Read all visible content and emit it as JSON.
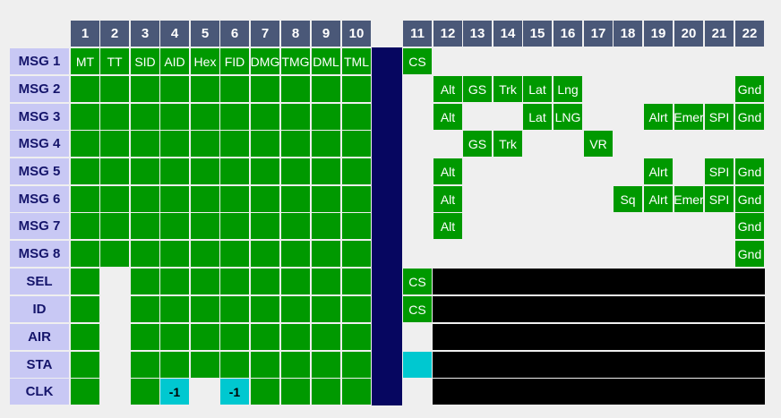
{
  "colors": {
    "header_bg": "#4a5878",
    "row_label_bg": "#c8c8f4",
    "row_label_text": "#15156b",
    "field_green": "#009900",
    "separator_navy": "#060660",
    "unused_black": "#000000",
    "delta_cyan": "#00c8d0",
    "background": "#efefef"
  },
  "columns": [
    "1",
    "2",
    "3",
    "4",
    "5",
    "6",
    "7",
    "8",
    "9",
    "10",
    "11",
    "12",
    "13",
    "14",
    "15",
    "16",
    "17",
    "18",
    "19",
    "20",
    "21",
    "22"
  ],
  "rows": [
    {
      "label": "MSG 1",
      "cells": [
        {
          "t": "MT",
          "c": "green"
        },
        {
          "t": "TT",
          "c": "green"
        },
        {
          "t": "SID",
          "c": "green"
        },
        {
          "t": "AID",
          "c": "green"
        },
        {
          "t": "Hex",
          "c": "green"
        },
        {
          "t": "FID",
          "c": "green"
        },
        {
          "t": "DMG",
          "c": "green"
        },
        {
          "t": "TMG",
          "c": "green"
        },
        {
          "t": "DML",
          "c": "green"
        },
        {
          "t": "TML",
          "c": "green"
        },
        {
          "t": "CS",
          "c": "green"
        },
        {
          "t": "",
          "c": "empty"
        },
        {
          "t": "",
          "c": "empty"
        },
        {
          "t": "",
          "c": "empty"
        },
        {
          "t": "",
          "c": "empty"
        },
        {
          "t": "",
          "c": "empty"
        },
        {
          "t": "",
          "c": "empty"
        },
        {
          "t": "",
          "c": "empty"
        },
        {
          "t": "",
          "c": "empty"
        },
        {
          "t": "",
          "c": "empty"
        },
        {
          "t": "",
          "c": "empty"
        },
        {
          "t": "",
          "c": "empty"
        }
      ]
    },
    {
      "label": "MSG 2",
      "cells": [
        {
          "t": "",
          "c": "green"
        },
        {
          "t": "",
          "c": "green"
        },
        {
          "t": "",
          "c": "green"
        },
        {
          "t": "",
          "c": "green"
        },
        {
          "t": "",
          "c": "green"
        },
        {
          "t": "",
          "c": "green"
        },
        {
          "t": "",
          "c": "green"
        },
        {
          "t": "",
          "c": "green"
        },
        {
          "t": "",
          "c": "green"
        },
        {
          "t": "",
          "c": "green"
        },
        {
          "t": "",
          "c": "empty"
        },
        {
          "t": "Alt",
          "c": "green"
        },
        {
          "t": "GS",
          "c": "green"
        },
        {
          "t": "Trk",
          "c": "green"
        },
        {
          "t": "Lat",
          "c": "green"
        },
        {
          "t": "Lng",
          "c": "green"
        },
        {
          "t": "",
          "c": "empty"
        },
        {
          "t": "",
          "c": "empty"
        },
        {
          "t": "",
          "c": "empty"
        },
        {
          "t": "",
          "c": "empty"
        },
        {
          "t": "",
          "c": "empty"
        },
        {
          "t": "Gnd",
          "c": "green"
        }
      ]
    },
    {
      "label": "MSG 3",
      "cells": [
        {
          "t": "",
          "c": "green"
        },
        {
          "t": "",
          "c": "green"
        },
        {
          "t": "",
          "c": "green"
        },
        {
          "t": "",
          "c": "green"
        },
        {
          "t": "",
          "c": "green"
        },
        {
          "t": "",
          "c": "green"
        },
        {
          "t": "",
          "c": "green"
        },
        {
          "t": "",
          "c": "green"
        },
        {
          "t": "",
          "c": "green"
        },
        {
          "t": "",
          "c": "green"
        },
        {
          "t": "",
          "c": "empty"
        },
        {
          "t": "Alt",
          "c": "green"
        },
        {
          "t": "",
          "c": "empty"
        },
        {
          "t": "",
          "c": "empty"
        },
        {
          "t": "Lat",
          "c": "green"
        },
        {
          "t": "LNG",
          "c": "green"
        },
        {
          "t": "",
          "c": "empty"
        },
        {
          "t": "",
          "c": "empty"
        },
        {
          "t": "Alrt",
          "c": "green"
        },
        {
          "t": "Emer",
          "c": "green"
        },
        {
          "t": "SPI",
          "c": "green"
        },
        {
          "t": "Gnd",
          "c": "green"
        }
      ]
    },
    {
      "label": "MSG 4",
      "cells": [
        {
          "t": "",
          "c": "green"
        },
        {
          "t": "",
          "c": "green"
        },
        {
          "t": "",
          "c": "green"
        },
        {
          "t": "",
          "c": "green"
        },
        {
          "t": "",
          "c": "green"
        },
        {
          "t": "",
          "c": "green"
        },
        {
          "t": "",
          "c": "green"
        },
        {
          "t": "",
          "c": "green"
        },
        {
          "t": "",
          "c": "green"
        },
        {
          "t": "",
          "c": "green"
        },
        {
          "t": "",
          "c": "empty"
        },
        {
          "t": "",
          "c": "empty"
        },
        {
          "t": "GS",
          "c": "green"
        },
        {
          "t": "Trk",
          "c": "green"
        },
        {
          "t": "",
          "c": "empty"
        },
        {
          "t": "",
          "c": "empty"
        },
        {
          "t": "VR",
          "c": "green"
        },
        {
          "t": "",
          "c": "empty"
        },
        {
          "t": "",
          "c": "empty"
        },
        {
          "t": "",
          "c": "empty"
        },
        {
          "t": "",
          "c": "empty"
        },
        {
          "t": "",
          "c": "empty"
        }
      ]
    },
    {
      "label": "MSG 5",
      "cells": [
        {
          "t": "",
          "c": "green"
        },
        {
          "t": "",
          "c": "green"
        },
        {
          "t": "",
          "c": "green"
        },
        {
          "t": "",
          "c": "green"
        },
        {
          "t": "",
          "c": "green"
        },
        {
          "t": "",
          "c": "green"
        },
        {
          "t": "",
          "c": "green"
        },
        {
          "t": "",
          "c": "green"
        },
        {
          "t": "",
          "c": "green"
        },
        {
          "t": "",
          "c": "green"
        },
        {
          "t": "",
          "c": "empty"
        },
        {
          "t": "Alt",
          "c": "green"
        },
        {
          "t": "",
          "c": "empty"
        },
        {
          "t": "",
          "c": "empty"
        },
        {
          "t": "",
          "c": "empty"
        },
        {
          "t": "",
          "c": "empty"
        },
        {
          "t": "",
          "c": "empty"
        },
        {
          "t": "",
          "c": "empty"
        },
        {
          "t": "Alrt",
          "c": "green"
        },
        {
          "t": "",
          "c": "empty"
        },
        {
          "t": "SPI",
          "c": "green"
        },
        {
          "t": "Gnd",
          "c": "green"
        }
      ]
    },
    {
      "label": "MSG 6",
      "cells": [
        {
          "t": "",
          "c": "green"
        },
        {
          "t": "",
          "c": "green"
        },
        {
          "t": "",
          "c": "green"
        },
        {
          "t": "",
          "c": "green"
        },
        {
          "t": "",
          "c": "green"
        },
        {
          "t": "",
          "c": "green"
        },
        {
          "t": "",
          "c": "green"
        },
        {
          "t": "",
          "c": "green"
        },
        {
          "t": "",
          "c": "green"
        },
        {
          "t": "",
          "c": "green"
        },
        {
          "t": "",
          "c": "empty"
        },
        {
          "t": "Alt",
          "c": "green"
        },
        {
          "t": "",
          "c": "empty"
        },
        {
          "t": "",
          "c": "empty"
        },
        {
          "t": "",
          "c": "empty"
        },
        {
          "t": "",
          "c": "empty"
        },
        {
          "t": "",
          "c": "empty"
        },
        {
          "t": "Sq",
          "c": "green"
        },
        {
          "t": "Alrt",
          "c": "green"
        },
        {
          "t": "Emer",
          "c": "green"
        },
        {
          "t": "SPI",
          "c": "green"
        },
        {
          "t": "Gnd",
          "c": "green"
        }
      ]
    },
    {
      "label": "MSG 7",
      "cells": [
        {
          "t": "",
          "c": "green"
        },
        {
          "t": "",
          "c": "green"
        },
        {
          "t": "",
          "c": "green"
        },
        {
          "t": "",
          "c": "green"
        },
        {
          "t": "",
          "c": "green"
        },
        {
          "t": "",
          "c": "green"
        },
        {
          "t": "",
          "c": "green"
        },
        {
          "t": "",
          "c": "green"
        },
        {
          "t": "",
          "c": "green"
        },
        {
          "t": "",
          "c": "green"
        },
        {
          "t": "",
          "c": "empty"
        },
        {
          "t": "Alt",
          "c": "green"
        },
        {
          "t": "",
          "c": "empty"
        },
        {
          "t": "",
          "c": "empty"
        },
        {
          "t": "",
          "c": "empty"
        },
        {
          "t": "",
          "c": "empty"
        },
        {
          "t": "",
          "c": "empty"
        },
        {
          "t": "",
          "c": "empty"
        },
        {
          "t": "",
          "c": "empty"
        },
        {
          "t": "",
          "c": "empty"
        },
        {
          "t": "",
          "c": "empty"
        },
        {
          "t": "Gnd",
          "c": "green"
        }
      ]
    },
    {
      "label": "MSG 8",
      "cells": [
        {
          "t": "",
          "c": "green"
        },
        {
          "t": "",
          "c": "green"
        },
        {
          "t": "",
          "c": "green"
        },
        {
          "t": "",
          "c": "green"
        },
        {
          "t": "",
          "c": "green"
        },
        {
          "t": "",
          "c": "green"
        },
        {
          "t": "",
          "c": "green"
        },
        {
          "t": "",
          "c": "green"
        },
        {
          "t": "",
          "c": "green"
        },
        {
          "t": "",
          "c": "green"
        },
        {
          "t": "",
          "c": "empty"
        },
        {
          "t": "",
          "c": "empty"
        },
        {
          "t": "",
          "c": "empty"
        },
        {
          "t": "",
          "c": "empty"
        },
        {
          "t": "",
          "c": "empty"
        },
        {
          "t": "",
          "c": "empty"
        },
        {
          "t": "",
          "c": "empty"
        },
        {
          "t": "",
          "c": "empty"
        },
        {
          "t": "",
          "c": "empty"
        },
        {
          "t": "",
          "c": "empty"
        },
        {
          "t": "",
          "c": "empty"
        },
        {
          "t": "Gnd",
          "c": "green"
        }
      ]
    },
    {
      "label": "SEL",
      "cells": [
        {
          "t": "",
          "c": "green"
        },
        {
          "t": "",
          "c": "empty"
        },
        {
          "t": "",
          "c": "green"
        },
        {
          "t": "",
          "c": "green"
        },
        {
          "t": "",
          "c": "green"
        },
        {
          "t": "",
          "c": "green"
        },
        {
          "t": "",
          "c": "green"
        },
        {
          "t": "",
          "c": "green"
        },
        {
          "t": "",
          "c": "green"
        },
        {
          "t": "",
          "c": "green"
        },
        {
          "t": "CS",
          "c": "green"
        }
      ]
    },
    {
      "label": "ID",
      "cells": [
        {
          "t": "",
          "c": "green"
        },
        {
          "t": "",
          "c": "empty"
        },
        {
          "t": "",
          "c": "green"
        },
        {
          "t": "",
          "c": "green"
        },
        {
          "t": "",
          "c": "green"
        },
        {
          "t": "",
          "c": "green"
        },
        {
          "t": "",
          "c": "green"
        },
        {
          "t": "",
          "c": "green"
        },
        {
          "t": "",
          "c": "green"
        },
        {
          "t": "",
          "c": "green"
        },
        {
          "t": "CS",
          "c": "green"
        }
      ]
    },
    {
      "label": "AIR",
      "cells": [
        {
          "t": "",
          "c": "green"
        },
        {
          "t": "",
          "c": "empty"
        },
        {
          "t": "",
          "c": "green"
        },
        {
          "t": "",
          "c": "green"
        },
        {
          "t": "",
          "c": "green"
        },
        {
          "t": "",
          "c": "green"
        },
        {
          "t": "",
          "c": "green"
        },
        {
          "t": "",
          "c": "green"
        },
        {
          "t": "",
          "c": "green"
        },
        {
          "t": "",
          "c": "green"
        },
        {
          "t": "",
          "c": "empty"
        }
      ]
    },
    {
      "label": "STA",
      "cells": [
        {
          "t": "",
          "c": "green"
        },
        {
          "t": "",
          "c": "empty"
        },
        {
          "t": "",
          "c": "green"
        },
        {
          "t": "",
          "c": "green"
        },
        {
          "t": "",
          "c": "green"
        },
        {
          "t": "",
          "c": "green"
        },
        {
          "t": "",
          "c": "green"
        },
        {
          "t": "",
          "c": "green"
        },
        {
          "t": "",
          "c": "green"
        },
        {
          "t": "",
          "c": "green"
        },
        {
          "t": "",
          "c": "cyan"
        }
      ]
    },
    {
      "label": "CLK",
      "cells": [
        {
          "t": "",
          "c": "green"
        },
        {
          "t": "",
          "c": "empty"
        },
        {
          "t": "",
          "c": "green"
        },
        {
          "t": "-1",
          "c": "cyan"
        },
        {
          "t": "",
          "c": "empty"
        },
        {
          "t": "-1",
          "c": "cyan"
        },
        {
          "t": "",
          "c": "green"
        },
        {
          "t": "",
          "c": "green"
        },
        {
          "t": "",
          "c": "green"
        },
        {
          "t": "",
          "c": "green"
        },
        {
          "t": "",
          "c": "empty"
        }
      ]
    }
  ]
}
